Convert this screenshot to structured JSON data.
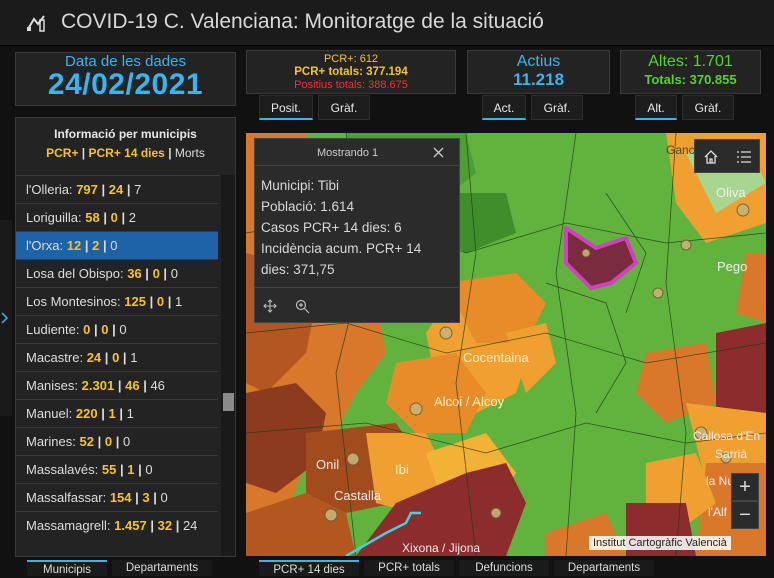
{
  "header": {
    "title": "COVID-19 C. Valenciana: Monitoratge de la situació"
  },
  "date": {
    "label": "Data de les dades",
    "value": "24/02/2021"
  },
  "pcr_box": {
    "line1": "PCR+: 612",
    "line2": "PCR+ totals: 377.194",
    "line3": "Positius totals: 388.675"
  },
  "pcr_tabs": [
    "Posit.",
    "Gràf."
  ],
  "actius": {
    "label": "Actius",
    "value": "11.218",
    "tabs": [
      "Act.",
      "Gràf."
    ]
  },
  "altes": {
    "label": "Altes: 1.701",
    "total": "Totals: 370.855",
    "tabs": [
      "Alt.",
      "Gràf."
    ]
  },
  "municipis": {
    "title": "Informació per municipis",
    "legend_a": "PCR+",
    "legend_sep1": " | ",
    "legend_b": "PCR+ 14 dies",
    "legend_sep2": " | ",
    "legend_c": "Morts",
    "rows": [
      {
        "name": "l'Olleria:",
        "a": "797",
        "b": "24",
        "c": "7"
      },
      {
        "name": "Loriguilla:",
        "a": "58",
        "b": "0",
        "c": "2"
      },
      {
        "name": "l'Orxa:",
        "a": "12",
        "b": "2",
        "c": "0"
      },
      {
        "name": "Losa del Obispo:",
        "a": "36",
        "b": "0",
        "c": "0"
      },
      {
        "name": "Los Montesinos:",
        "a": "125",
        "b": "0",
        "c": "1"
      },
      {
        "name": "Ludiente:",
        "a": "0",
        "b": "0",
        "c": "0"
      },
      {
        "name": "Macastre:",
        "a": "24",
        "b": "0",
        "c": "1"
      },
      {
        "name": "Manises:",
        "a": "2.301",
        "b": "46",
        "c": "46"
      },
      {
        "name": "Manuel:",
        "a": "220",
        "b": "1",
        "c": "1"
      },
      {
        "name": "Marines:",
        "a": "52",
        "b": "0",
        "c": "0"
      },
      {
        "name": "Massalavés:",
        "a": "55",
        "b": "1",
        "c": "0"
      },
      {
        "name": "Massalfassar:",
        "a": "154",
        "b": "3",
        "c": "0"
      },
      {
        "name": "Massamagrell:",
        "a": "1.457",
        "b": "32",
        "c": "24"
      }
    ],
    "sep": "|",
    "bottom_tabs": [
      "Municipis",
      "Departaments"
    ]
  },
  "popup": {
    "title": "Mostrando 1",
    "lines": [
      "Municipi: Tibi",
      "Població: 1.614",
      "Casos PCR+ 14 dies: 6",
      "Incidència acum. PCR+ 14",
      "dies: 371,75"
    ]
  },
  "map": {
    "labels": [
      "Ganc",
      "Oliva",
      "Pego",
      "Cocentaina",
      "Alcoi / Alcoy",
      "Onil",
      "Ibi",
      "Castalla",
      "Xixona / Jijona",
      "Callosa d'En",
      "Sarrià",
      "la Nu",
      "l'Alf"
    ],
    "attribution": "Institut Cartogràfic Valencià",
    "zoom_in": "+",
    "zoom_out": "−",
    "bottom_tabs": [
      "PCR+ 14 dies",
      "PCR+ totals",
      "Defuncions",
      "Departaments"
    ]
  },
  "colors": {
    "accent": "#38b4ee",
    "yellow": "#f4c430",
    "green": "#5ad130",
    "red": "#e33333",
    "selected": "#1e62a8"
  },
  "icons": [
    "logo-icon",
    "home-icon",
    "list-icon",
    "close-icon",
    "move-icon",
    "zoom-to-icon",
    "expand-arrow-icon"
  ]
}
